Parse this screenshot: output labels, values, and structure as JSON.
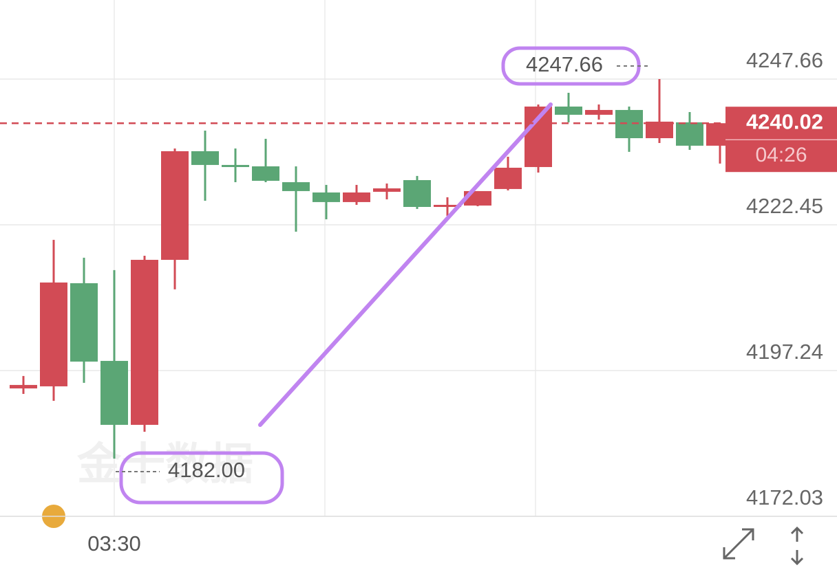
{
  "chart_data": {
    "type": "candlestick",
    "watermark": "金十数据",
    "categories": [
      null,
      null,
      null,
      "03:30",
      null,
      null,
      null,
      null,
      null,
      null,
      null,
      null,
      null,
      null,
      null,
      null,
      null,
      null,
      null,
      null,
      null,
      null,
      null,
      null
    ],
    "open": [
      4194.15,
      4194.51,
      4212.35,
      4198.91,
      4187.85,
      4216.39,
      4235.18,
      4232.8,
      4232.56,
      4229.82,
      4228.04,
      4226.38,
      4228.16,
      4230.18,
      4225.54,
      4225.78,
      4228.64,
      4232.44,
      4242.9,
      4241.48,
      4242.31,
      4237.43,
      4240.17,
      4236.13
    ],
    "high": [
      4196.3,
      4219.84,
      4216.75,
      4214.61,
      4217.1,
      4235.65,
      4238.74,
      4235.65,
      4237.32,
      4232.56,
      4229.35,
      4229.35,
      4229.59,
      4230.9,
      4227.21,
      4228.28,
      4234.22,
      4243.26,
      4245.28,
      4243.26,
      4242.9,
      4247.66,
      4241.95,
      4240.02
    ],
    "low": [
      4193.2,
      4192.01,
      4195.11,
      4182.0,
      4186.66,
      4211.28,
      4226.61,
      4229.82,
      4229.82,
      4221.26,
      4223.4,
      4225.9,
      4226.85,
      4225.19,
      4224.0,
      4225.66,
      4228.4,
      4231.49,
      4240.17,
      4240.64,
      4235.06,
      4236.6,
      4235.41,
      4233.04
    ],
    "close": [
      4194.75,
      4212.47,
      4198.79,
      4187.85,
      4216.39,
      4235.18,
      4232.8,
      4232.44,
      4230.06,
      4228.28,
      4226.38,
      4228.04,
      4228.75,
      4225.54,
      4225.9,
      4228.28,
      4232.32,
      4242.9,
      4241.48,
      4242.31,
      4237.43,
      4240.29,
      4236.13,
      4240.02
    ],
    "up_color": "#d24b55",
    "down_color": "#5ba675",
    "ylim": [
      4172.03,
      4261.33
    ],
    "yticks": [
      4172.03,
      4197.24,
      4222.45,
      4247.66
    ],
    "grid": true,
    "max_high": 4247.66,
    "min_low": {
      "value": 4182,
      "label": "4182.00"
    },
    "last_price": 4240.02,
    "countdown": "04:26"
  }
}
